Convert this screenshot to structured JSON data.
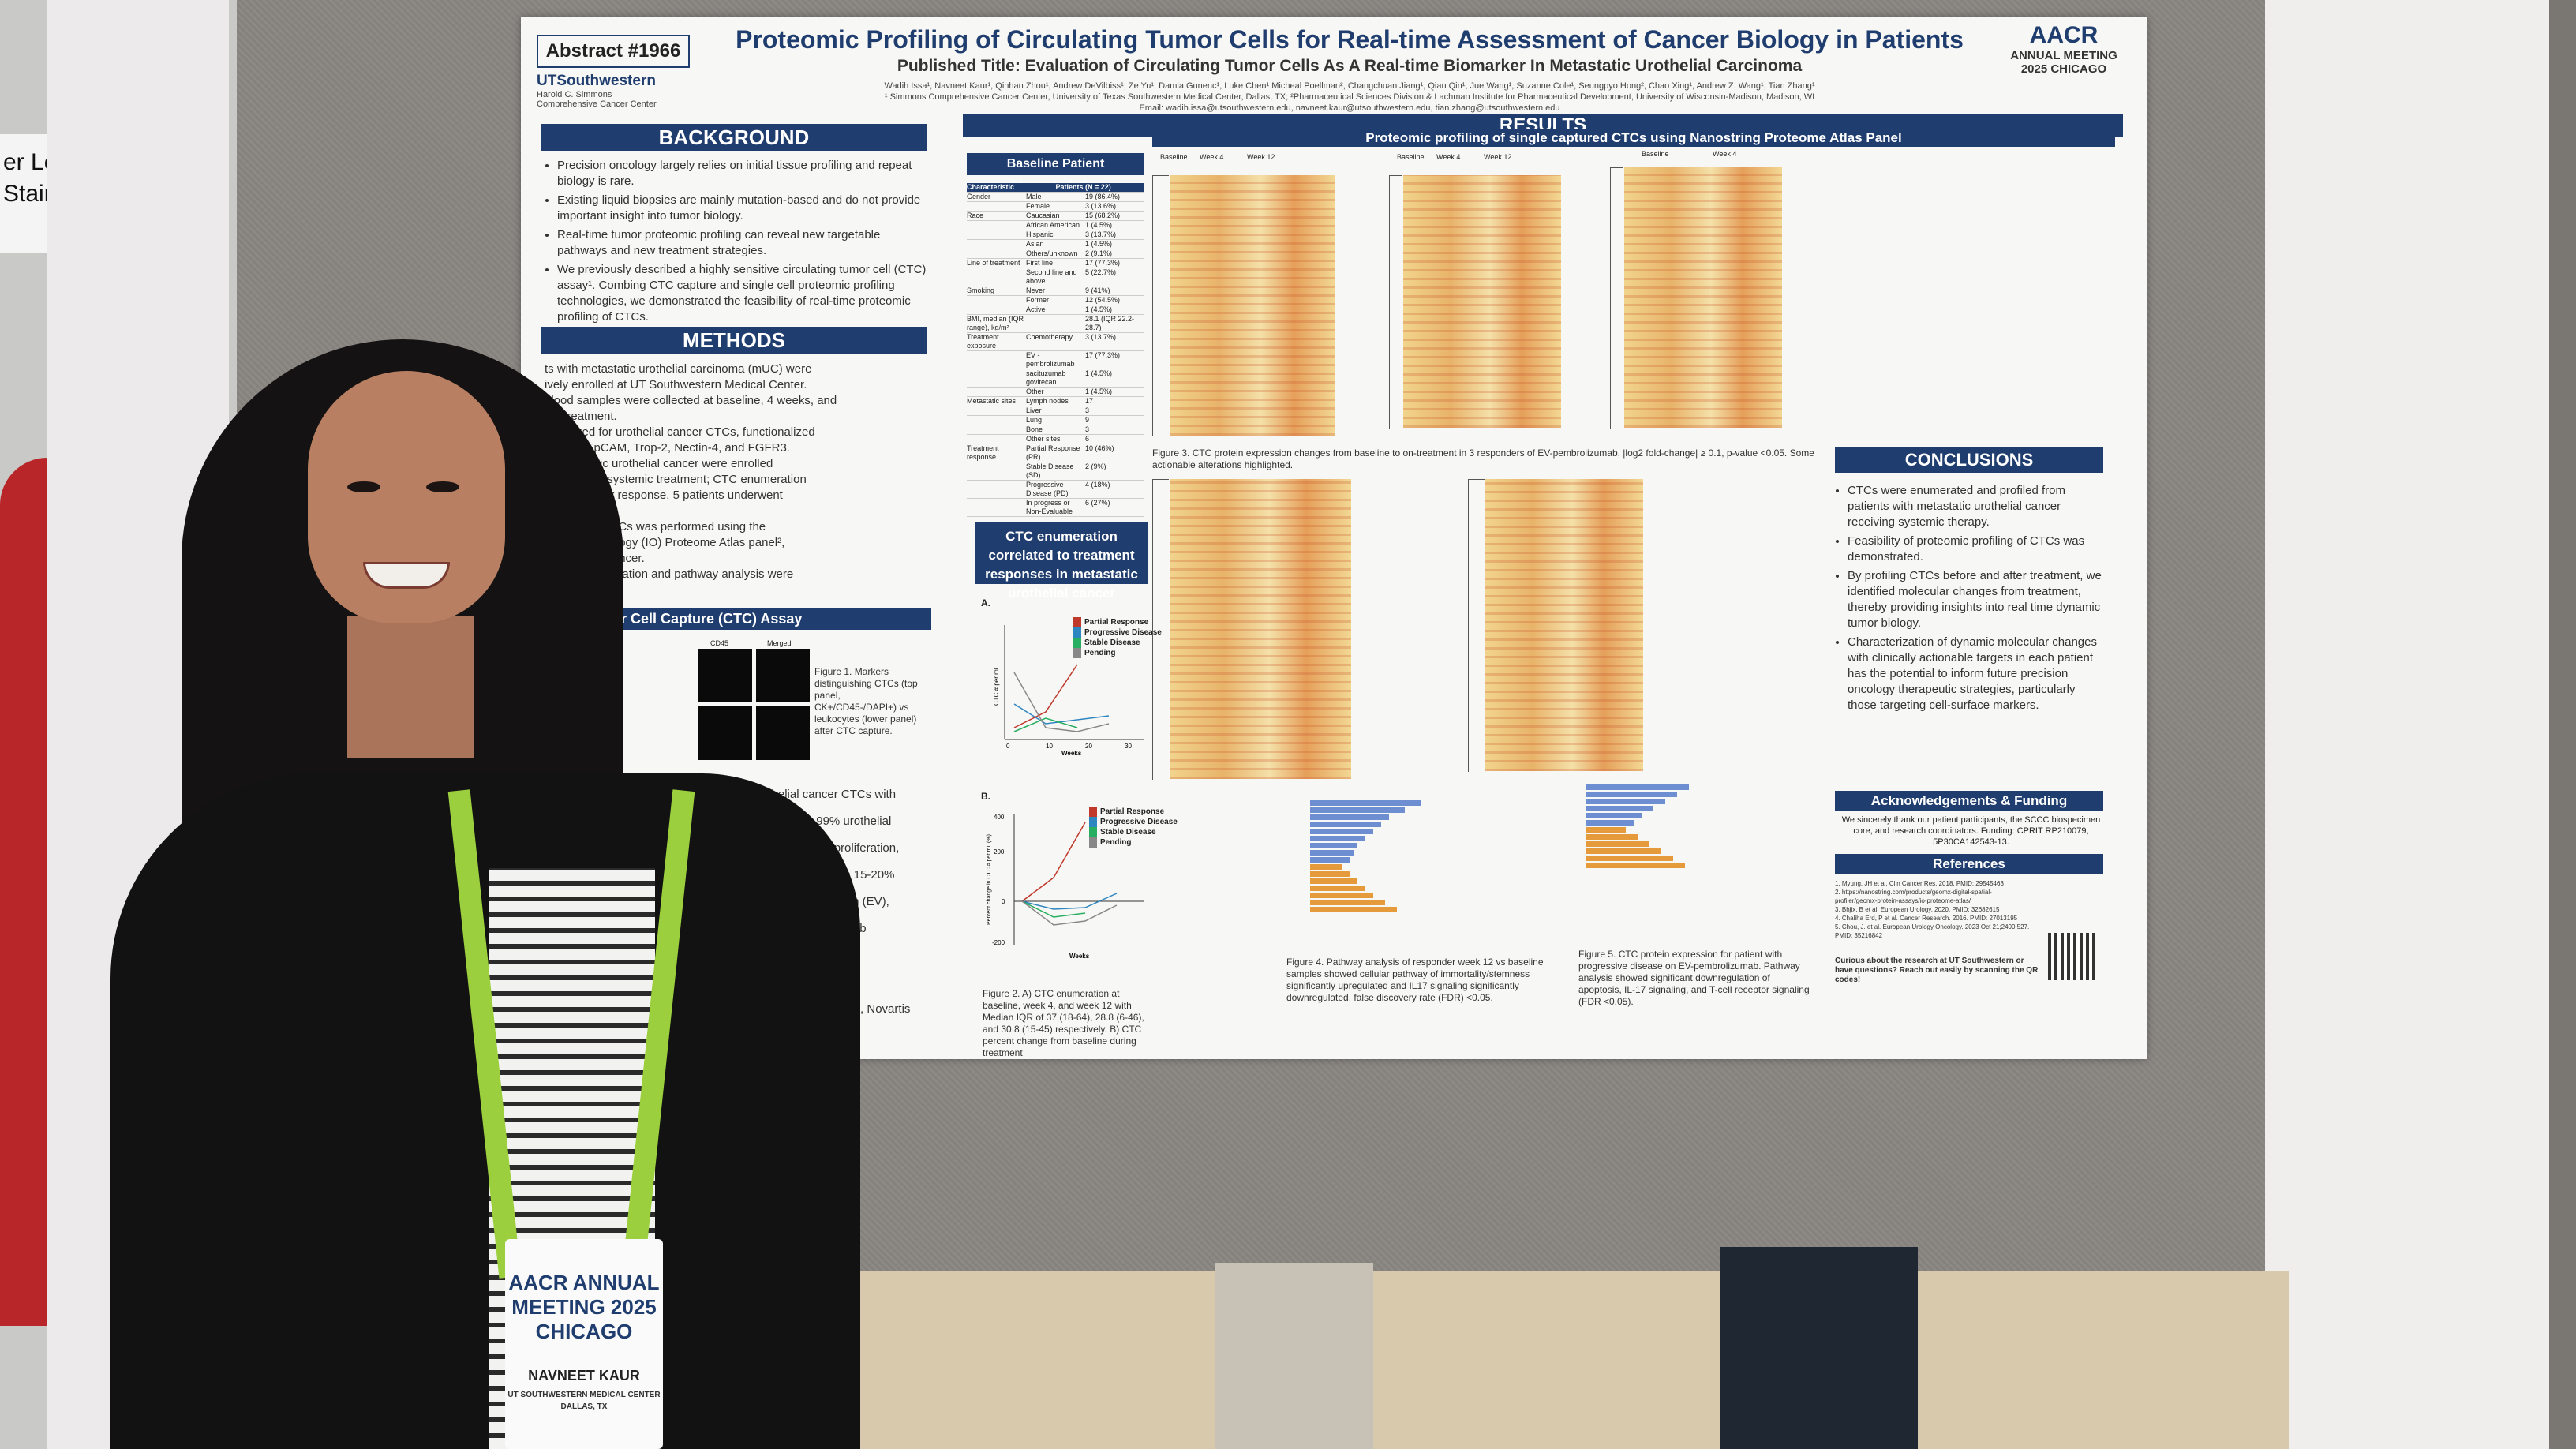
{
  "scene": {
    "sign": {
      "line1": "er Level",
      "line2": "Stairway"
    }
  },
  "poster": {
    "abstract": "Abstract #1966",
    "institution": "UTSouthwestern",
    "institution_sub1": "Harold C. Simmons",
    "institution_sub2": "Comprehensive Cancer Center",
    "aacr": "AACR",
    "aacr_sub": "ANNUAL MEETING 2025 CHICAGO",
    "title": "Proteomic Profiling of Circulating Tumor Cells for Real-time Assessment of Cancer Biology in Patients",
    "published_title": "Published Title: Evaluation of Circulating Tumor Cells As A Real-time Biomarker In Metastatic Urothelial Carcinoma",
    "authors": "Wadih Issa¹, Navneet Kaur¹, Qinhan Zhou¹, Andrew DeVilbiss¹, Ze Yu¹, Damla Gunenc¹, Luke Chen¹ Micheal Poellman², Changchuan Jiang¹, Qian Qin¹, Jue Wang¹, Suzanne Cole¹, Seungpyo Hong², Chao Xing¹, Andrew Z. Wang¹, Tian Zhang¹",
    "affiliations": "¹ Simmons Comprehensive Cancer Center, University of Texas Southwestern Medical Center, Dallas, TX; ²Pharmaceutical Sciences Division & Lachman Institute for Pharmaceutical Development, University of Wisconsin-Madison, Madison, WI",
    "email": "Email: wadih.issa@utsouthwestern.edu, navneet.kaur@utsouthwestern.edu, tian.zhang@utsouthwestern.edu",
    "background": {
      "heading": "BACKGROUND",
      "bullets": [
        "Precision oncology largely relies on initial tissue profiling and repeat biology is rare.",
        "Existing liquid biopsies are mainly mutation-based and do not provide important insight into tumor biology.",
        "Real-time tumor proteomic profiling can reveal new targetable pathways and new treatment strategies.",
        "We previously described a highly sensitive circulating tumor cell (CTC) assay¹. Combing CTC capture and single cell proteomic profiling technologies, we demonstrated the feasibility of real-time proteomic profiling of CTCs."
      ]
    },
    "methods": {
      "heading": "METHODS",
      "lines": [
        "ts with metastatic urothelial carcinoma (mUC) were",
        "ively enrolled at UT Southwestern Medical Center.",
        "blood samples were collected at baseline, 4 weeks, and",
        "ing treatment.",
        "optimized for urothelial cancer CTCs, functionalized",
        "against EpCAM, Trop-2, Nectin-4, and FGFR3.",
        "h metastatic urothelial cancer were enrolled",
        "r to starting systemic treatment; CTC enumeration",
        "biomarker for response. 5 patients underwent",
        "omic profiling.",
        "profiling of CTCs was performed using the",
        "mmuno-Oncology (IO) Proteome Atlas panel²,",
        "s related to cancer.",
        "ontology annotation and pathway analysis were"
      ]
    },
    "ctc_capture": {
      "heading": "mor Cell Capture (CTC) Assay",
      "col1": "CD45",
      "col2": "Merged",
      "caption": "Figure 1. Markers distinguishing CTCs (top panel, CK+/CD45-/DAPI+) vs leukocytes (lower panel) after CTC capture."
    },
    "left_lower_lines": [
      "rothelial cancer CTCs with",
      "ed in up to 99% urothelial",
      "regulating cell proliferation,",
      "FR3 expressed in 15-20%",
      "enfortumab vedotin (EV),",
      "an and datopotamab",
      "s³",
      "elles, Janssen",
      "Pfizer, BMS, Gilead, Novartis"
    ],
    "results": {
      "heading": "RESULTS",
      "baseline_heading": "Baseline Patient Characteristics",
      "table_header": [
        "Characteristic",
        "Patients (N = 22)"
      ],
      "table_rows": [
        [
          "Gender",
          "Male",
          "19 (86.4%)"
        ],
        [
          "",
          "Female",
          "3 (13.6%)"
        ],
        [
          "Race",
          "Caucasian",
          "15 (68.2%)"
        ],
        [
          "",
          "African American",
          "1 (4.5%)"
        ],
        [
          "",
          "Hispanic",
          "3 (13.7%)"
        ],
        [
          "",
          "Asian",
          "1 (4.5%)"
        ],
        [
          "",
          "Others/unknown",
          "2 (9.1%)"
        ],
        [
          "Line of treatment",
          "First line",
          "17 (77.3%)"
        ],
        [
          "",
          "Second line and above",
          "5 (22.7%)"
        ],
        [
          "Smoking",
          "Never",
          "9 (41%)"
        ],
        [
          "",
          "Former",
          "12 (54.5%)"
        ],
        [
          "",
          "Active",
          "1 (4.5%)"
        ],
        [
          "BMI, median (IQR range), kg/m²",
          "",
          "28.1 (IQR 22.2-28.7)"
        ],
        [
          "Treatment exposure",
          "Chemotherapy",
          "3 (13.7%)"
        ],
        [
          "",
          "EV - pembrolizumab",
          "17 (77.3%)"
        ],
        [
          "",
          "sacituzumab govitecan",
          "1 (4.5%)"
        ],
        [
          "",
          "Other",
          "1 (4.5%)"
        ],
        [
          "Metastatic sites",
          "Lymph nodes",
          "17"
        ],
        [
          "",
          "Liver",
          "3"
        ],
        [
          "",
          "Lung",
          "9"
        ],
        [
          "",
          "Bone",
          "3"
        ],
        [
          "",
          "Other sites",
          "6"
        ],
        [
          "Treatment response",
          "Partial Response (PR)",
          "10 (46%)"
        ],
        [
          "",
          "Stable Disease (SD)",
          "2 (9%)"
        ],
        [
          "",
          "Progressive Disease (PD)",
          "4 (18%)"
        ],
        [
          "",
          "In progress or Non-Evaluable",
          "6 (27%)"
        ]
      ],
      "ctc_enum_heading": "CTC enumeration correlated to treatment responses in metastatic urothelial cancer",
      "fig2a_label": "A.",
      "fig2b_label": "B.",
      "fig2_legend": [
        "Partial Response",
        "Progressive Disease",
        "Stable Disease",
        "Pending"
      ],
      "fig2a_ylabel": "CTC # per mL",
      "fig2b_ylabel": "Percent change in CTC # per mL (%)",
      "fig2_xlabel": "Weeks",
      "fig2a_xticks": [
        "0",
        "10",
        "20",
        "30"
      ],
      "fig2b_yticks": [
        "400",
        "200",
        "0",
        "-200"
      ],
      "fig2_caption": "Figure 2. A) CTC enumeration at baseline, week 4, and week 12 with Median IQR of 37 (18-64), 28.8 (6-46), and 30.8 (15-45) respectively. B) CTC percent change from baseline during treatment",
      "proteomic_heading": "Proteomic profiling of single captured CTCs using Nanostring Proteome Atlas Panel",
      "heat_labels": [
        "Baseline",
        "Week 4",
        "Week 12"
      ],
      "fig3_caption": "Figure 3. CTC protein expression changes from baseline to on-treatment in 3 responders of EV-pembrolizumab, |log2 fold-change| ≥ 0.1, p-value <0.05. Some actionable alterations highlighted.",
      "fig4_caption": "Figure 4. Pathway analysis of responder week 12 vs baseline samples showed cellular pathway of immortality/stemness significantly upregulated and IL17 signaling significantly downregulated. false discovery rate (FDR) <0.05.",
      "fig5_caption": "Figure 5. CTC protein expression for patient with progressive disease on EV-pembrolizumab. Pathway analysis showed significant downregulation of apoptosis, IL-17 signaling, and T-cell receptor signaling (FDR <0.05)."
    },
    "conclusions": {
      "heading": "CONCLUSIONS",
      "bullets": [
        "CTCs were enumerated and profiled from patients with metastatic urothelial cancer receiving systemic therapy.",
        "Feasibility of proteomic profiling of CTCs was demonstrated.",
        "By profiling CTCs before and after treatment, we identified molecular changes from treatment, thereby providing insights into real time dynamic tumor biology.",
        "Characterization of dynamic molecular changes with clinically actionable targets in each patient has the potential to inform future precision oncology therapeutic strategies, particularly those targeting cell-surface markers."
      ]
    },
    "ack": {
      "heading": "Acknowledgements & Funding",
      "text": "We sincerely thank our patient participants, the SCCC biospecimen core, and research coordinators. Funding: CPRIT RP210079, 5P30CA142543-13."
    },
    "refs": {
      "heading": "References",
      "items": [
        "1. Myung, JH et al. Clin Cancer Res. 2018. PMID: 29545463",
        "2. https://nanostring.com/products/geomx-digital-spatial-profiler/geomx-protein-assays/io-proteome-atlas/",
        "3. Bhjix, B et al. European Urology. 2020. PMID: 32682615",
        "4. Chaliha Erd, P et al. Cancer Research. 2016. PMID: 27013195",
        "5. Chou, J. et al. European Urology Oncology. 2023 Oct 21;2400,527. PMID: 35216842"
      ],
      "qr_text": "Curious about the research at UT Southwestern or have questions? Reach out easily by scanning the QR codes!"
    }
  },
  "badge": {
    "event": "AACR ANNUAL MEETING 2025 CHICAGO",
    "name": "NAVNEET KAUR",
    "org": "UT SOUTHWESTERN MEDICAL CENTER",
    "city": "DALLAS, TX"
  }
}
